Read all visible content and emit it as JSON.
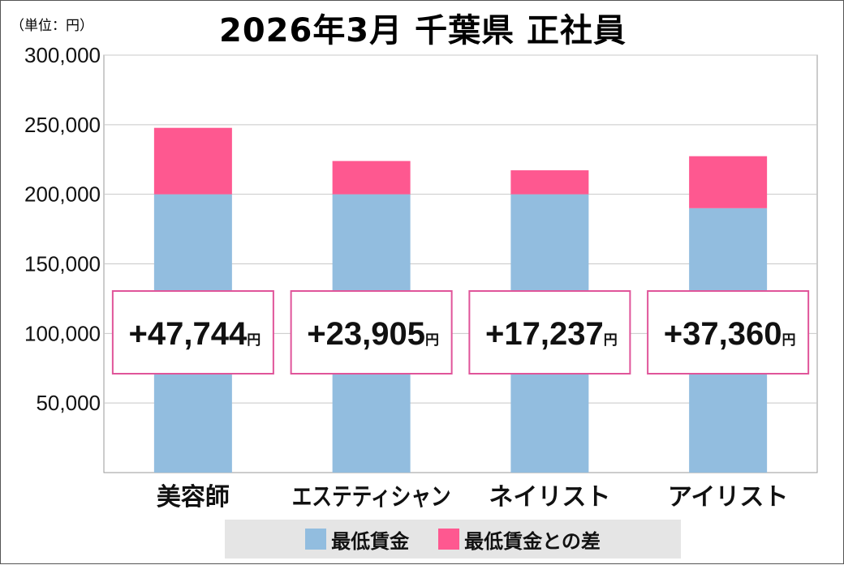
{
  "unit_label": "（単位：円）",
  "title": "2026年3月 千葉県 正社員",
  "colors": {
    "base": "#92bddf",
    "diff": "#fe5890",
    "grid": "#c8c8c8",
    "box_border": "#e0559a"
  },
  "legend": [
    {
      "label": "最低賃金",
      "color": "#92bddf"
    },
    {
      "label": "最低賃金との差",
      "color": "#fe5890"
    }
  ],
  "chart_data": {
    "type": "bar",
    "stacked": true,
    "title": "2026年3月 千葉県 正社員",
    "categories": [
      "美容師",
      "エステティシャン",
      "ネイリスト",
      "アイリスト"
    ],
    "series": [
      {
        "name": "最低賃金",
        "values": [
          200000,
          200000,
          200000,
          190000
        ]
      },
      {
        "name": "最低賃金との差",
        "values": [
          47744,
          23905,
          17237,
          37360
        ]
      }
    ],
    "difference_labels": [
      "+47,744",
      "+23,905",
      "+17,237",
      "+37,360"
    ],
    "difference_unit": "円",
    "ylim": [
      0,
      300000
    ],
    "yticks": [
      50000,
      100000,
      150000,
      200000,
      250000,
      300000
    ],
    "ytick_labels": [
      "50,000",
      "100,000",
      "150,000",
      "200,000",
      "250,000",
      "300,000"
    ],
    "grid": true,
    "legend_position": "bottom"
  }
}
